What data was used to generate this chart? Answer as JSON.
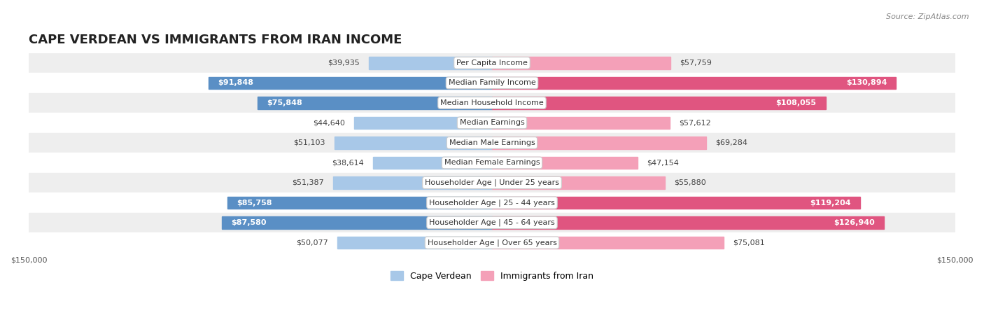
{
  "title": "CAPE VERDEAN VS IMMIGRANTS FROM IRAN INCOME",
  "source": "Source: ZipAtlas.com",
  "categories": [
    "Per Capita Income",
    "Median Family Income",
    "Median Household Income",
    "Median Earnings",
    "Median Male Earnings",
    "Median Female Earnings",
    "Householder Age | Under 25 years",
    "Householder Age | 25 - 44 years",
    "Householder Age | 45 - 64 years",
    "Householder Age | Over 65 years"
  ],
  "cape_verdean": [
    39935,
    91848,
    75848,
    44640,
    51103,
    38614,
    51387,
    85758,
    87580,
    50077
  ],
  "iran": [
    57759,
    130894,
    108055,
    57612,
    69284,
    47154,
    55880,
    119204,
    126940,
    75081
  ],
  "max_val": 150000,
  "blue_light": "#a8c8e8",
  "blue_dark": "#5a8fc5",
  "pink_light": "#f4a0b8",
  "pink_dark": "#e05580",
  "row_bg_light": "#eeeeee",
  "row_bg_white": "#ffffff",
  "title_fontsize": 13,
  "label_fontsize": 8.0,
  "value_fontsize": 8.0,
  "legend_fontsize": 9,
  "axis_label_fontsize": 8,
  "background_color": "#ffffff",
  "cv_dark_threshold": 60000,
  "iv_dark_threshold": 100000
}
